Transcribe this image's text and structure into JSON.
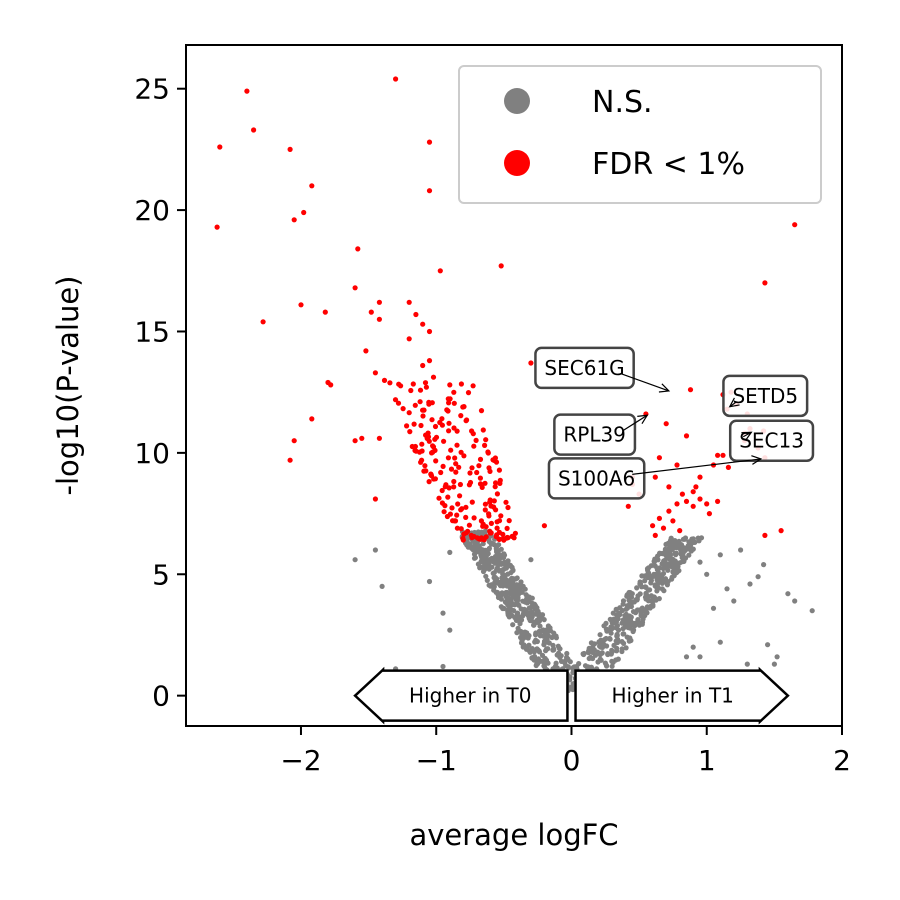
{
  "chart_data": {
    "type": "scatter",
    "title": "",
    "xlabel": "average logFC",
    "ylabel": "-log10(P-value)",
    "xlim": [
      -2.85,
      2.0
    ],
    "ylim": [
      -1.25,
      26.8
    ],
    "xticks": [
      -2,
      -1,
      0,
      1,
      2
    ],
    "yticks": [
      0,
      5,
      10,
      15,
      20,
      25
    ],
    "grid": false,
    "legend": {
      "placement": "top-right",
      "entries": [
        {
          "label": "N.S.",
          "color": "#808080"
        },
        {
          "label": "FDR < 1%",
          "color": "#ff0000"
        }
      ]
    },
    "series": [
      {
        "name": "N.S.",
        "color": "#808080",
        "points": [
          [
            -1.6,
            5.6
          ],
          [
            -1.45,
            6.0
          ],
          [
            -1.4,
            4.5
          ],
          [
            -1.3,
            1.1
          ],
          [
            -1.05,
            4.7
          ],
          [
            -0.95,
            3.4
          ],
          [
            -0.9,
            2.7
          ],
          [
            -0.95,
            1.2
          ],
          [
            -0.9,
            5.9
          ],
          [
            -0.3,
            5.6
          ],
          [
            1.05,
            3.6
          ],
          [
            1.1,
            5.8
          ],
          [
            1.15,
            4.4
          ],
          [
            1.1,
            2.2
          ],
          [
            1.2,
            3.9
          ],
          [
            1.25,
            6.0
          ],
          [
            1.3,
            1.3
          ],
          [
            1.32,
            4.6
          ],
          [
            1.38,
            4.9
          ],
          [
            1.42,
            5.4
          ],
          [
            1.45,
            2.1
          ],
          [
            1.5,
            1.3
          ],
          [
            1.52,
            1.6
          ],
          [
            1.6,
            4.2
          ],
          [
            1.65,
            3.9
          ],
          [
            1.78,
            3.5
          ],
          [
            0.85,
            1.6
          ],
          [
            0.9,
            2.0
          ],
          [
            0.95,
            1.6
          ],
          [
            0.75,
            0.9
          ],
          [
            0.2,
            0.6
          ],
          [
            0.15,
            1.1
          ],
          [
            -0.15,
            0.6
          ],
          [
            -0.2,
            1.2
          ],
          [
            1.0,
            5.0
          ],
          [
            0.95,
            5.5
          ]
        ],
        "left_arm": {
          "x_from": -0.78,
          "x_to": -0.02,
          "y_top": 6.8,
          "y_bottom": 0.2,
          "count": 520
        },
        "right_arm": {
          "x_from": 0.92,
          "x_to": 0.03,
          "y_top": 6.5,
          "y_bottom": 0.2,
          "count": 400
        }
      },
      {
        "name": "FDR < 1%",
        "color": "#ff0000",
        "points": [
          [
            -2.4,
            24.9
          ],
          [
            -2.6,
            22.6
          ],
          [
            -2.35,
            23.3
          ],
          [
            -2.08,
            22.5
          ],
          [
            -1.92,
            21.0
          ],
          [
            -1.98,
            19.9
          ],
          [
            -2.05,
            19.6
          ],
          [
            -2.62,
            19.3
          ],
          [
            -2.28,
            15.4
          ],
          [
            -2.0,
            16.1
          ],
          [
            -1.82,
            15.8
          ],
          [
            -1.78,
            12.8
          ],
          [
            -1.8,
            12.9
          ],
          [
            -1.92,
            11.4
          ],
          [
            -2.05,
            10.5
          ],
          [
            -2.08,
            9.7
          ],
          [
            -1.3,
            25.4
          ],
          [
            -1.05,
            22.8
          ],
          [
            -1.05,
            20.8
          ],
          [
            -0.97,
            17.5
          ],
          [
            -0.52,
            17.7
          ],
          [
            -1.58,
            18.4
          ],
          [
            -1.6,
            16.8
          ],
          [
            -1.42,
            16.2
          ],
          [
            -1.48,
            15.8
          ],
          [
            -1.42,
            15.5
          ],
          [
            -1.52,
            14.2
          ],
          [
            -1.2,
            16.2
          ],
          [
            -1.15,
            15.7
          ],
          [
            -1.1,
            15.3
          ],
          [
            -1.05,
            15.0
          ],
          [
            -1.2,
            14.7
          ],
          [
            -1.05,
            13.8
          ],
          [
            -1.1,
            13.6
          ],
          [
            -1.45,
            13.3
          ],
          [
            -0.9,
            12.8
          ],
          [
            -1.55,
            10.6
          ],
          [
            -1.42,
            10.6
          ],
          [
            -1.6,
            10.5
          ],
          [
            -1.45,
            8.1
          ],
          [
            -0.3,
            13.7
          ],
          [
            -0.2,
            7.0
          ],
          [
            -0.55,
            6.9
          ],
          [
            -0.6,
            6.7
          ]
        ],
        "left_cluster": {
          "x_from": -1.35,
          "x_to": -0.42,
          "y_from": 6.4,
          "y_to": 13.2,
          "count": 210
        },
        "right_points": [
          [
            1.65,
            19.4
          ],
          [
            1.43,
            17.0
          ],
          [
            1.12,
            12.4
          ],
          [
            1.18,
            12.5
          ],
          [
            1.15,
            11.8
          ],
          [
            1.22,
            12.0
          ],
          [
            1.3,
            11.6
          ],
          [
            1.28,
            10.8
          ],
          [
            1.32,
            11.0
          ],
          [
            1.28,
            10.5
          ],
          [
            1.38,
            10.2
          ],
          [
            1.42,
            10.9
          ],
          [
            1.08,
            9.9
          ],
          [
            1.12,
            9.9
          ],
          [
            1.05,
            9.5
          ],
          [
            1.16,
            9.4
          ],
          [
            1.43,
            9.8
          ],
          [
            1.43,
            6.6
          ],
          [
            1.55,
            6.8
          ],
          [
            0.88,
            12.6
          ],
          [
            0.85,
            10.7
          ],
          [
            0.65,
            9.8
          ],
          [
            0.7,
            11.2
          ],
          [
            0.55,
            11.6
          ],
          [
            0.45,
            9.0
          ],
          [
            0.62,
            9.0
          ],
          [
            0.62,
            6.6
          ],
          [
            0.6,
            7.0
          ],
          [
            0.68,
            6.9
          ],
          [
            0.65,
            7.3
          ],
          [
            0.72,
            7.6
          ],
          [
            0.75,
            7.2
          ],
          [
            0.8,
            6.8
          ],
          [
            0.78,
            7.9
          ],
          [
            0.85,
            8.0
          ],
          [
            0.9,
            7.8
          ],
          [
            0.95,
            8.1
          ],
          [
            1.0,
            7.9
          ],
          [
            1.02,
            7.5
          ],
          [
            1.08,
            8.0
          ],
          [
            0.72,
            8.6
          ],
          [
            0.78,
            9.5
          ],
          [
            0.92,
            8.6
          ],
          [
            0.95,
            9.0
          ],
          [
            0.82,
            8.3
          ],
          [
            0.9,
            8.4
          ],
          [
            0.45,
            8.7
          ],
          [
            0.5,
            8.3
          ],
          [
            0.42,
            7.8
          ]
        ]
      }
    ],
    "annotations": [
      {
        "text": "SEC61G",
        "box_x": -0.2,
        "box_y": 13.5,
        "point": [
          0.72,
          12.55
        ]
      },
      {
        "text": "SETD5",
        "box_x": 1.19,
        "box_y": 12.35,
        "point": [
          1.17,
          11.9
        ]
      },
      {
        "text": "RPL39",
        "box_x": -0.06,
        "box_y": 10.75,
        "point": [
          0.56,
          11.55
        ]
      },
      {
        "text": "SEC13",
        "box_x": 1.24,
        "box_y": 10.5,
        "point": [
          1.33,
          10.85
        ]
      },
      {
        "text": "S100A6",
        "box_x": -0.1,
        "box_y": 8.95,
        "point": [
          1.4,
          9.75
        ]
      }
    ],
    "direction_arrows": [
      {
        "text": "Higher in T0",
        "direction": "left",
        "x_from": -1.6,
        "x_to": -0.03,
        "y": 0
      },
      {
        "text": "Higher in T1",
        "direction": "right",
        "x_from": 0.03,
        "x_to": 1.6,
        "y": 0
      }
    ]
  }
}
